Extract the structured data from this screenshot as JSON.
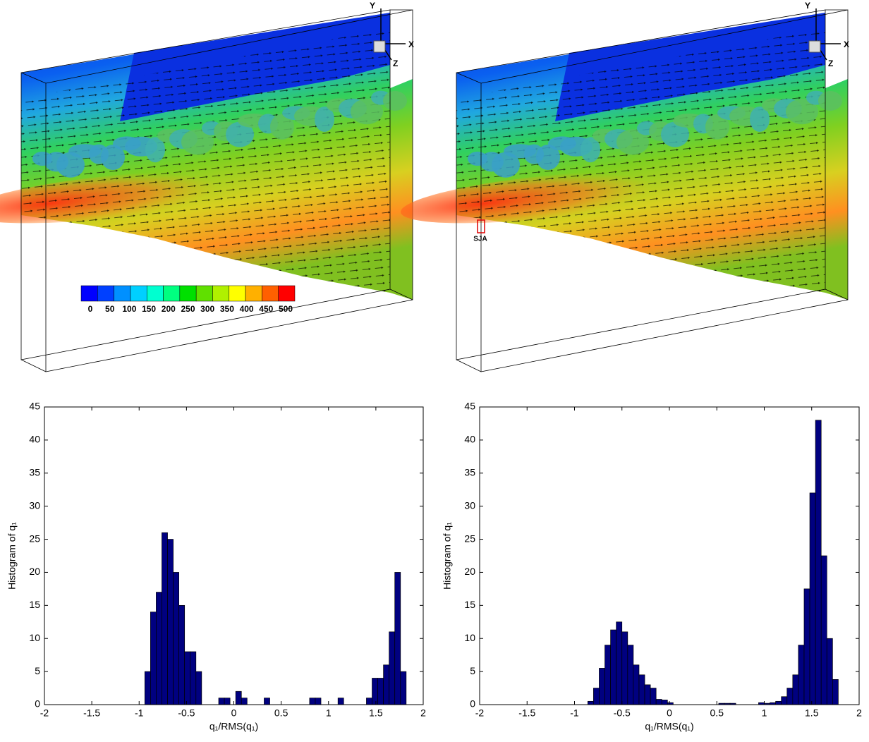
{
  "renders": {
    "left": {
      "axis_labels": [
        "Y",
        "X",
        "Z"
      ],
      "colorbar": {
        "colors": [
          "#0000ff",
          "#0040ff",
          "#0090ff",
          "#00d0ff",
          "#00ffd0",
          "#00ff80",
          "#00e000",
          "#60e000",
          "#b0f000",
          "#ffff00",
          "#ffb000",
          "#ff6000",
          "#ff0000"
        ],
        "ticks": [
          0,
          50,
          100,
          150,
          200,
          250,
          300,
          350,
          400,
          450,
          500
        ]
      }
    },
    "right": {
      "axis_labels": [
        "Y",
        "X",
        "Z"
      ],
      "annotation": "SJA"
    }
  },
  "chart_data": [
    {
      "type": "histogram",
      "xlabel": "q₁/RMS(q₁)",
      "ylabel": "Histogram of q₁",
      "color": "#000080",
      "xlim": [
        -2,
        2
      ],
      "ylim": [
        0,
        45
      ],
      "xticks": [
        -2,
        -1.5,
        -1,
        -0.5,
        0,
        0.5,
        1,
        1.5,
        2
      ],
      "yticks": [
        0,
        5,
        10,
        15,
        20,
        25,
        30,
        35,
        40,
        45
      ],
      "bins": [
        -0.94,
        -0.88,
        -0.82,
        -0.76,
        -0.7,
        -0.64,
        -0.58,
        -0.52,
        -0.46,
        -0.4,
        -0.34,
        -0.28,
        -0.22,
        -0.16,
        -0.1,
        -0.04,
        0.02,
        0.08,
        0.14,
        0.2,
        0.26,
        0.32,
        0.38,
        0.44,
        0.5,
        0.56,
        0.62,
        0.68,
        0.74,
        0.8,
        0.86,
        0.92,
        0.98,
        1.04,
        1.1,
        1.16,
        1.22,
        1.28,
        1.34,
        1.4,
        1.46,
        1.52,
        1.58,
        1.64,
        1.7,
        1.76,
        1.82
      ],
      "values": [
        5,
        14,
        17,
        26,
        25,
        20,
        15,
        8,
        8,
        5,
        0,
        0,
        0,
        1,
        1,
        0,
        2,
        1,
        0,
        0,
        0,
        1,
        0,
        0,
        0,
        0,
        0,
        0,
        0,
        1,
        1,
        0,
        0,
        0,
        1,
        0,
        0,
        0,
        0,
        1,
        4,
        4,
        6,
        11,
        20,
        5
      ]
    },
    {
      "type": "histogram",
      "xlabel": "q₁/RMS(q₁)",
      "ylabel": "Histogram of q₁",
      "color": "#000080",
      "xlim": [
        -2,
        2
      ],
      "ylim": [
        0,
        45
      ],
      "xticks": [
        -2,
        -1.5,
        -1,
        -0.5,
        0,
        0.5,
        1,
        1.5,
        2
      ],
      "yticks": [
        0,
        5,
        10,
        15,
        20,
        25,
        30,
        35,
        40,
        45
      ],
      "bins": [
        -0.86,
        -0.8,
        -0.74,
        -0.68,
        -0.62,
        -0.56,
        -0.5,
        -0.44,
        -0.38,
        -0.32,
        -0.26,
        -0.2,
        -0.14,
        -0.08,
        -0.02,
        0.04,
        0.1,
        0.16,
        0.22,
        0.28,
        0.34,
        0.4,
        0.46,
        0.52,
        0.58,
        0.64,
        0.7,
        0.76,
        0.82,
        0.88,
        0.94,
        1.0,
        1.06,
        1.12,
        1.18,
        1.24,
        1.3,
        1.36,
        1.42,
        1.48,
        1.54,
        1.6,
        1.66,
        1.72,
        1.78
      ],
      "values": [
        0.5,
        2.5,
        5.5,
        9,
        11.3,
        12.5,
        11,
        9,
        6,
        4.5,
        3,
        2.5,
        0.8,
        0.7,
        0.3,
        0,
        0,
        0,
        0,
        0,
        0,
        0,
        0,
        0.2,
        0.2,
        0.2,
        0,
        0,
        0,
        0,
        0.3,
        0.2,
        0.3,
        0.5,
        1.2,
        2.5,
        4.5,
        9,
        17.5,
        32,
        43,
        22.5,
        10,
        3.8
      ]
    }
  ]
}
